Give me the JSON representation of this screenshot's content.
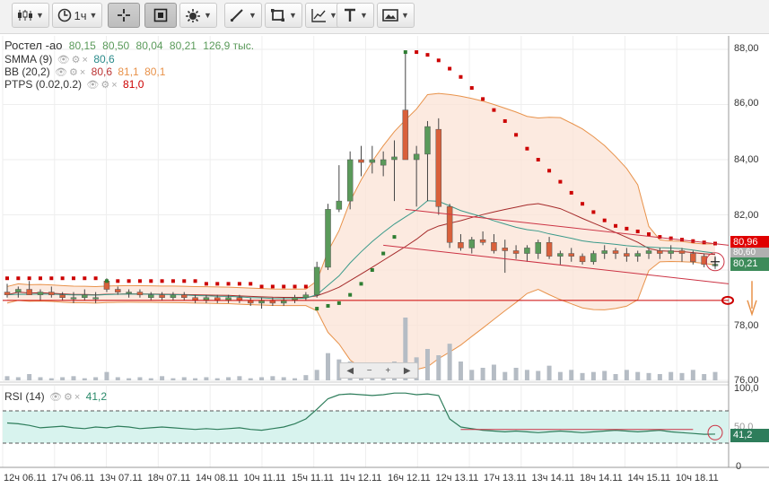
{
  "toolbar": {
    "timeframe_label": "1ч",
    "buttons": [
      {
        "name": "chart-type-button",
        "icon": "candlestick-icon"
      },
      {
        "name": "timeframe-button",
        "icon": "clock-icon"
      },
      {
        "name": "crosshair-button",
        "icon": "crosshair-icon"
      },
      {
        "name": "frame-button",
        "icon": "frame-icon"
      },
      {
        "name": "indicators-button",
        "icon": "gear-sun-icon"
      },
      {
        "name": "draw-line-button",
        "icon": "pencil-line-icon"
      },
      {
        "name": "shapes-button",
        "icon": "square-icon"
      },
      {
        "name": "fib-button",
        "icon": "trend-axis-icon"
      },
      {
        "name": "text-button",
        "icon": "text-icon"
      },
      {
        "name": "image-button",
        "icon": "picture-icon"
      }
    ]
  },
  "legend": {
    "symbol": "Ростел -ао",
    "ohlc": [
      "80,15",
      "80,50",
      "80,04",
      "80,21"
    ],
    "volume": "126,9 тыс.",
    "smma": {
      "name": "SMMA (9)",
      "value": "80,6"
    },
    "bb": {
      "name": "BB (20,2)",
      "values": [
        "80,6",
        "81,1",
        "80,1"
      ]
    },
    "ptps": {
      "name": "PTPS (0.02,0.2)",
      "value": "81,0"
    }
  },
  "price_axis": [
    "88,00",
    "86,00",
    "84,00",
    "82,00",
    "80,00",
    "78,00",
    "76,00"
  ],
  "price_badges": {
    "upper": "80,96",
    "mid": "80,60",
    "last": "80,21"
  },
  "rsi": {
    "name": "RSI (14)",
    "value": "41,2",
    "axis": [
      "100,0",
      "50,0",
      "0"
    ]
  },
  "time_axis": [
    "12ч 06.11",
    "17ч 06.11",
    "13ч 07.11",
    "18ч 07.11",
    "14ч 08.11",
    "10ч 11.11",
    "15ч 11.11",
    "11ч 12.11",
    "16ч 12.11",
    "12ч 13.11",
    "17ч 13.11",
    "13ч 14.11",
    "18ч 14.11",
    "14ч 15.11",
    "10ч 18.11"
  ],
  "colors": {
    "up": "#5a9a5a",
    "down": "#d9603b",
    "sar": "#cc0000",
    "bb_fill": "#fbe3d6",
    "bb_line": "#e8924a",
    "smma": "#3a9a8a",
    "rsi_fill": "#d8f3ee"
  },
  "chart_data": {
    "type": "candlestick",
    "ylim": [
      75.8,
      88.3
    ],
    "candles": [
      {
        "o": 79.2,
        "h": 79.5,
        "l": 79.0,
        "c": 79.1
      },
      {
        "o": 79.2,
        "h": 79.4,
        "l": 79.0,
        "c": 79.3
      },
      {
        "o": 79.3,
        "h": 79.6,
        "l": 79.1,
        "c": 79.1
      },
      {
        "o": 79.1,
        "h": 79.3,
        "l": 78.9,
        "c": 79.2
      },
      {
        "o": 79.2,
        "h": 79.4,
        "l": 79.0,
        "c": 79.1
      },
      {
        "o": 79.1,
        "h": 79.2,
        "l": 78.9,
        "c": 79.0
      },
      {
        "o": 79.0,
        "h": 79.2,
        "l": 78.8,
        "c": 79.0
      },
      {
        "o": 79.0,
        "h": 79.3,
        "l": 78.9,
        "c": 79.1
      },
      {
        "o": 79.0,
        "h": 79.2,
        "l": 78.8,
        "c": 79.0
      },
      {
        "o": 79.6,
        "h": 79.7,
        "l": 79.2,
        "c": 79.3
      },
      {
        "o": 79.3,
        "h": 79.4,
        "l": 79.1,
        "c": 79.2
      },
      {
        "o": 79.2,
        "h": 79.3,
        "l": 79.0,
        "c": 79.2
      },
      {
        "o": 79.2,
        "h": 79.3,
        "l": 79.0,
        "c": 79.1
      },
      {
        "o": 79.0,
        "h": 79.2,
        "l": 78.9,
        "c": 79.1
      },
      {
        "o": 79.1,
        "h": 79.2,
        "l": 78.9,
        "c": 79.0
      },
      {
        "o": 79.0,
        "h": 79.2,
        "l": 78.9,
        "c": 79.1
      },
      {
        "o": 79.1,
        "h": 79.2,
        "l": 78.9,
        "c": 79.0
      },
      {
        "o": 79.0,
        "h": 79.1,
        "l": 78.8,
        "c": 78.9
      },
      {
        "o": 78.9,
        "h": 79.1,
        "l": 78.8,
        "c": 79.0
      },
      {
        "o": 79.0,
        "h": 79.1,
        "l": 78.8,
        "c": 78.9
      },
      {
        "o": 78.9,
        "h": 79.1,
        "l": 78.8,
        "c": 79.0
      },
      {
        "o": 79.0,
        "h": 79.1,
        "l": 78.8,
        "c": 78.9
      },
      {
        "o": 78.9,
        "h": 79.0,
        "l": 78.7,
        "c": 78.8
      },
      {
        "o": 78.8,
        "h": 79.0,
        "l": 78.6,
        "c": 78.9
      },
      {
        "o": 78.9,
        "h": 79.0,
        "l": 78.7,
        "c": 78.8
      },
      {
        "o": 78.8,
        "h": 79.0,
        "l": 78.7,
        "c": 78.9
      },
      {
        "o": 78.9,
        "h": 79.1,
        "l": 78.8,
        "c": 79.0
      },
      {
        "o": 79.0,
        "h": 79.2,
        "l": 78.9,
        "c": 79.1
      },
      {
        "o": 79.1,
        "h": 80.3,
        "l": 79.0,
        "c": 80.1
      },
      {
        "o": 80.1,
        "h": 82.4,
        "l": 80.0,
        "c": 82.2
      },
      {
        "o": 82.2,
        "h": 83.8,
        "l": 82.1,
        "c": 82.5
      },
      {
        "o": 82.5,
        "h": 84.3,
        "l": 82.2,
        "c": 84.0
      },
      {
        "o": 84.0,
        "h": 84.5,
        "l": 83.4,
        "c": 83.9
      },
      {
        "o": 83.9,
        "h": 84.5,
        "l": 83.5,
        "c": 84.0
      },
      {
        "o": 83.8,
        "h": 84.3,
        "l": 83.4,
        "c": 84.0
      },
      {
        "o": 84.0,
        "h": 84.7,
        "l": 82.5,
        "c": 84.1
      },
      {
        "o": 85.8,
        "h": 87.9,
        "l": 84.0,
        "c": 84.0
      },
      {
        "o": 84.0,
        "h": 84.5,
        "l": 82.3,
        "c": 84.2
      },
      {
        "o": 84.2,
        "h": 85.4,
        "l": 82.5,
        "c": 85.2
      },
      {
        "o": 85.1,
        "h": 85.5,
        "l": 82.0,
        "c": 82.3
      },
      {
        "o": 82.3,
        "h": 82.4,
        "l": 80.8,
        "c": 81.0
      },
      {
        "o": 81.0,
        "h": 81.3,
        "l": 80.7,
        "c": 80.8
      },
      {
        "o": 80.8,
        "h": 81.2,
        "l": 80.6,
        "c": 81.1
      },
      {
        "o": 81.1,
        "h": 81.4,
        "l": 80.9,
        "c": 81.0
      },
      {
        "o": 81.0,
        "h": 81.3,
        "l": 80.6,
        "c": 80.7
      },
      {
        "o": 80.8,
        "h": 81.1,
        "l": 79.9,
        "c": 80.7
      },
      {
        "o": 80.7,
        "h": 80.9,
        "l": 80.4,
        "c": 80.6
      },
      {
        "o": 80.6,
        "h": 80.9,
        "l": 80.3,
        "c": 80.8
      },
      {
        "o": 80.6,
        "h": 81.1,
        "l": 80.4,
        "c": 81.0
      },
      {
        "o": 81.0,
        "h": 81.2,
        "l": 80.4,
        "c": 80.5
      },
      {
        "o": 80.5,
        "h": 80.7,
        "l": 80.2,
        "c": 80.6
      },
      {
        "o": 80.6,
        "h": 80.8,
        "l": 80.3,
        "c": 80.5
      },
      {
        "o": 80.5,
        "h": 80.6,
        "l": 80.2,
        "c": 80.3
      },
      {
        "o": 80.3,
        "h": 80.7,
        "l": 80.2,
        "c": 80.6
      },
      {
        "o": 80.6,
        "h": 80.9,
        "l": 80.4,
        "c": 80.7
      },
      {
        "o": 80.7,
        "h": 80.8,
        "l": 80.4,
        "c": 80.6
      },
      {
        "o": 80.6,
        "h": 80.8,
        "l": 80.3,
        "c": 80.5
      },
      {
        "o": 80.5,
        "h": 80.7,
        "l": 80.3,
        "c": 80.6
      },
      {
        "o": 80.6,
        "h": 80.8,
        "l": 80.4,
        "c": 80.7
      },
      {
        "o": 80.7,
        "h": 80.8,
        "l": 80.4,
        "c": 80.6
      },
      {
        "o": 80.6,
        "h": 80.9,
        "l": 80.4,
        "c": 80.7
      },
      {
        "o": 80.7,
        "h": 80.8,
        "l": 80.3,
        "c": 80.6
      },
      {
        "o": 80.6,
        "h": 80.7,
        "l": 80.2,
        "c": 80.3
      },
      {
        "o": 80.5,
        "h": 80.6,
        "l": 80.1,
        "c": 80.2
      },
      {
        "o": 80.15,
        "h": 80.5,
        "l": 80.04,
        "c": 80.21
      }
    ],
    "sar": [
      79.7,
      79.7,
      79.7,
      79.7,
      79.7,
      79.7,
      79.7,
      79.7,
      79.7,
      79.6,
      79.6,
      79.6,
      79.6,
      79.6,
      79.6,
      79.6,
      79.6,
      79.6,
      79.5,
      79.5,
      79.5,
      79.5,
      79.5,
      79.4,
      79.4,
      79.4,
      79.4,
      79.4,
      78.6,
      78.7,
      78.8,
      79.1,
      79.5,
      80.0,
      80.6,
      81.2,
      87.9,
      87.9,
      87.8,
      87.6,
      87.3,
      87.0,
      86.6,
      86.2,
      85.8,
      85.4,
      84.9,
      84.4,
      84.0,
      83.6,
      83.2,
      82.8,
      82.4,
      82.1,
      81.8,
      81.6,
      81.5,
      81.4,
      81.3,
      81.2,
      81.15,
      81.1,
      81.05,
      81.0,
      80.96
    ],
    "volume": [
      4,
      3,
      6,
      3,
      2,
      3,
      4,
      2,
      3,
      8,
      3,
      2,
      3,
      2,
      4,
      2,
      3,
      2,
      3,
      2,
      3,
      4,
      2,
      3,
      4,
      3,
      2,
      5,
      10,
      26,
      20,
      18,
      14,
      16,
      12,
      18,
      60,
      22,
      30,
      24,
      35,
      18,
      10,
      12,
      15,
      8,
      12,
      10,
      9,
      14,
      8,
      10,
      7,
      8,
      9,
      6,
      10,
      8,
      7,
      6,
      8,
      7,
      10,
      6,
      8
    ],
    "rsi": [
      55,
      54,
      52,
      49,
      50,
      51,
      49,
      48,
      50,
      49,
      51,
      50,
      48,
      49,
      50,
      49,
      48,
      47,
      48,
      47,
      48,
      49,
      47,
      46,
      48,
      50,
      54,
      60,
      72,
      85,
      90,
      91,
      90,
      89,
      90,
      92,
      92,
      90,
      91,
      89,
      60,
      50,
      48,
      46,
      45,
      44,
      45,
      44,
      43,
      44,
      45,
      44,
      43,
      44,
      45,
      46,
      45,
      44,
      45,
      46,
      44,
      43,
      42,
      41,
      41.2
    ]
  }
}
